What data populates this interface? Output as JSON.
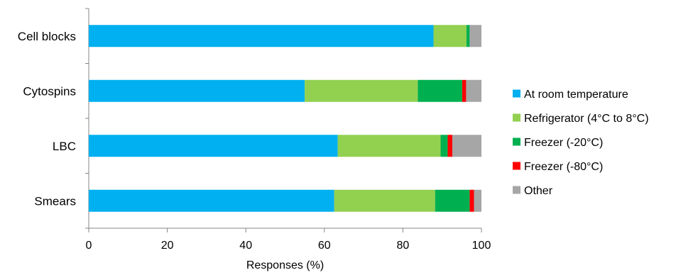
{
  "chart_data": {
    "type": "bar",
    "orientation": "horizontal",
    "stacked": true,
    "categories": [
      "Cell blocks",
      "Cytospins",
      "LBC",
      "Smears"
    ],
    "series": [
      {
        "name": "At room temperature",
        "color": "#00b0f0",
        "values": [
          87.8,
          55.0,
          63.4,
          62.5
        ]
      },
      {
        "name": "Refrigerator (4°C to 8°C)",
        "color": "#92d050",
        "values": [
          8.4,
          28.8,
          26.2,
          25.7
        ]
      },
      {
        "name": "Freezer (-20°C)",
        "color": "#00b050",
        "values": [
          0.8,
          11.3,
          1.8,
          8.8
        ]
      },
      {
        "name": "Freezer (-80°C)",
        "color": "#ff0000",
        "values": [
          0,
          1.0,
          1.2,
          1.1
        ]
      },
      {
        "name": "Other",
        "color": "#a6a6a6",
        "values": [
          3.0,
          3.9,
          7.4,
          1.9
        ]
      }
    ],
    "xlabel": "Responses (%)",
    "ylabel": "",
    "xlim": [
      0,
      100
    ],
    "xticks": [
      "0",
      "20",
      "40",
      "60",
      "80",
      "100"
    ],
    "grid": false,
    "legend_position": "right"
  }
}
